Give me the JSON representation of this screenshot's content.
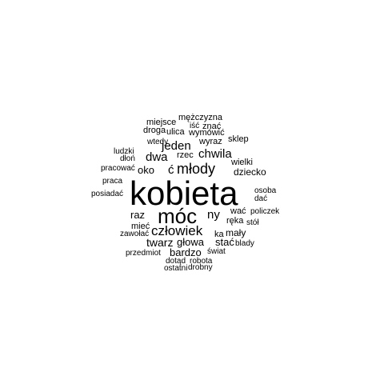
{
  "text_color": "#000000",
  "background": "#ffffff",
  "words": [
    {
      "text": "mężczyzna"
    },
    {
      "text": "miejsce"
    },
    {
      "text": "iść"
    },
    {
      "text": "znać"
    },
    {
      "text": "droga"
    },
    {
      "text": "ulica"
    },
    {
      "text": "wymówić"
    },
    {
      "text": "wtedy"
    },
    {
      "text": "wyraz"
    },
    {
      "text": "sklep"
    },
    {
      "text": "jeden"
    },
    {
      "text": "ludzki"
    },
    {
      "text": "dwa"
    },
    {
      "text": "chwila"
    },
    {
      "text": "dłoń"
    },
    {
      "text": "rzec"
    },
    {
      "text": "wielki"
    },
    {
      "text": "pracować"
    },
    {
      "text": "oko"
    },
    {
      "text": "ć"
    },
    {
      "text": "młody"
    },
    {
      "text": "dziecko"
    },
    {
      "text": "praca"
    },
    {
      "text": "kobieta"
    },
    {
      "text": "osoba"
    },
    {
      "text": "posiadać"
    },
    {
      "text": "dać"
    },
    {
      "text": "raz"
    },
    {
      "text": "móc"
    },
    {
      "text": "ny"
    },
    {
      "text": "wać"
    },
    {
      "text": "policzek"
    },
    {
      "text": "ręka"
    },
    {
      "text": "stół"
    },
    {
      "text": "mieć"
    },
    {
      "text": "człowiek"
    },
    {
      "text": "zawołać"
    },
    {
      "text": "ka"
    },
    {
      "text": "mały"
    },
    {
      "text": "twarz"
    },
    {
      "text": "głowa"
    },
    {
      "text": "stać"
    },
    {
      "text": "blady"
    },
    {
      "text": "bardzo"
    },
    {
      "text": "przedmiot"
    },
    {
      "text": "świat"
    },
    {
      "text": "dotąd"
    },
    {
      "text": "robota"
    },
    {
      "text": "ostatni"
    },
    {
      "text": "drobny"
    }
  ]
}
